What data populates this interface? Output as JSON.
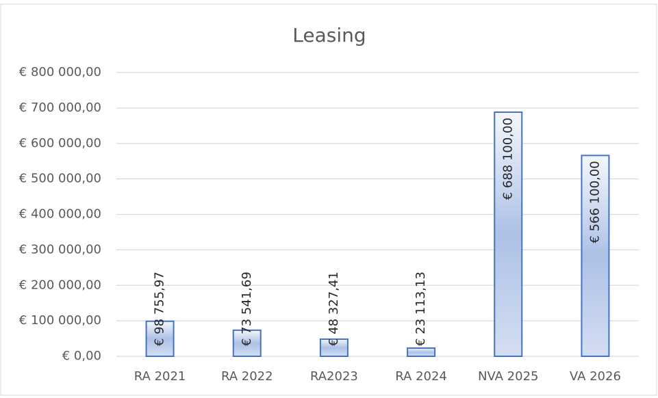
{
  "chart_data": {
    "type": "bar",
    "title": "Leasing",
    "categories": [
      "RA 2021",
      "RA 2022",
      "RA2023",
      "RA 2024",
      "NVA 2025",
      "VA 2026"
    ],
    "values": [
      98755.97,
      73541.69,
      48327.41,
      23113.13,
      688100,
      566100
    ],
    "value_labels": [
      "€ 98 755,97",
      "€ 73 541,69",
      "€ 48 327,41",
      "€ 23 113,13",
      "€ 688 100,00",
      "€ 566 100,00"
    ],
    "color": "#4472c4",
    "ylim": [
      0,
      800000
    ],
    "yticks": [
      {
        "value": 0,
        "label": "€ 0,00"
      },
      {
        "value": 100000,
        "label": "€ 100 000,00"
      },
      {
        "value": 200000,
        "label": "€ 200 000,00"
      },
      {
        "value": 300000,
        "label": "€ 300 000,00"
      },
      {
        "value": 400000,
        "label": "€ 400 000,00"
      },
      {
        "value": 500000,
        "label": "€ 500 000,00"
      },
      {
        "value": 600000,
        "label": "€ 600 000,00"
      },
      {
        "value": 700000,
        "label": "€ 700 000,00"
      },
      {
        "value": 800000,
        "label": "€ 800 000,00"
      }
    ],
    "grid": true
  }
}
